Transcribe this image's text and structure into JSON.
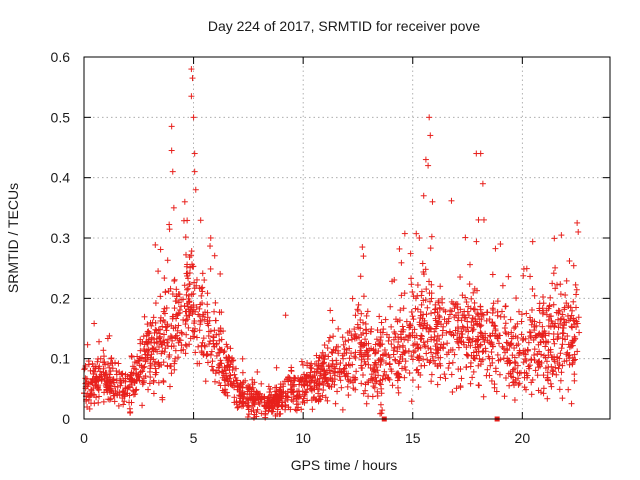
{
  "chart_data": {
    "type": "scatter",
    "title": "Day 224 of 2017, SRMTID for receiver pove",
    "xlabel": "GPS time / hours",
    "ylabel": "SRMTID / TECUs",
    "xlim": [
      0,
      24
    ],
    "ylim": [
      0,
      0.6
    ],
    "xticks": [
      0,
      5,
      10,
      15,
      20
    ],
    "yticks": [
      0,
      0.1,
      0.2,
      0.3,
      0.4,
      0.5,
      0.6
    ],
    "xtick_labels": [
      "0",
      "5",
      "10",
      "15",
      "20"
    ],
    "ytick_labels": [
      "0",
      "0.1",
      "0.2",
      "0.3",
      "0.4",
      "0.5",
      "0.6"
    ],
    "grid": true,
    "marker": "+",
    "color": "#e8201c",
    "outliers": [
      {
        "x": 4.0,
        "y": 0.485
      },
      {
        "x": 4.0,
        "y": 0.445
      },
      {
        "x": 4.05,
        "y": 0.41
      },
      {
        "x": 4.1,
        "y": 0.35
      },
      {
        "x": 4.6,
        "y": 0.36
      },
      {
        "x": 4.9,
        "y": 0.58
      },
      {
        "x": 4.95,
        "y": 0.565
      },
      {
        "x": 4.9,
        "y": 0.535
      },
      {
        "x": 5.0,
        "y": 0.5
      },
      {
        "x": 5.05,
        "y": 0.44
      },
      {
        "x": 5.05,
        "y": 0.41
      },
      {
        "x": 5.1,
        "y": 0.38
      },
      {
        "x": 9.2,
        "y": 0.172
      },
      {
        "x": 15.3,
        "y": 0.3
      },
      {
        "x": 15.5,
        "y": 0.37
      },
      {
        "x": 15.6,
        "y": 0.43
      },
      {
        "x": 15.75,
        "y": 0.5
      },
      {
        "x": 15.8,
        "y": 0.47
      },
      {
        "x": 15.7,
        "y": 0.42
      },
      {
        "x": 15.9,
        "y": 0.36
      },
      {
        "x": 17.9,
        "y": 0.44
      },
      {
        "x": 18.1,
        "y": 0.44
      },
      {
        "x": 18.2,
        "y": 0.39
      },
      {
        "x": 18.0,
        "y": 0.33
      },
      {
        "x": 18.25,
        "y": 0.33
      },
      {
        "x": 22.5,
        "y": 0.325
      },
      {
        "x": 22.55,
        "y": 0.31
      },
      {
        "x": 12.7,
        "y": 0.285
      },
      {
        "x": 12.75,
        "y": 0.27
      },
      {
        "x": 19.0,
        "y": 0.29
      }
    ],
    "square_markers": [
      {
        "x": 13.7,
        "y": 0.0
      },
      {
        "x": 18.85,
        "y": 0.0
      }
    ],
    "envelope_note": "Dense scatter; typical values by hour follow envelope below",
    "envelope": [
      {
        "x": 0.0,
        "mean": 0.055,
        "spread": 0.035
      },
      {
        "x": 1.0,
        "mean": 0.065,
        "spread": 0.04
      },
      {
        "x": 2.0,
        "mean": 0.045,
        "spread": 0.03
      },
      {
        "x": 3.0,
        "mean": 0.11,
        "spread": 0.07
      },
      {
        "x": 4.0,
        "mean": 0.15,
        "spread": 0.09
      },
      {
        "x": 4.8,
        "mean": 0.2,
        "spread": 0.08
      },
      {
        "x": 5.5,
        "mean": 0.15,
        "spread": 0.07
      },
      {
        "x": 6.5,
        "mean": 0.08,
        "spread": 0.05
      },
      {
        "x": 7.5,
        "mean": 0.035,
        "spread": 0.025
      },
      {
        "x": 8.5,
        "mean": 0.025,
        "spread": 0.02
      },
      {
        "x": 9.5,
        "mean": 0.05,
        "spread": 0.03
      },
      {
        "x": 10.5,
        "mean": 0.065,
        "spread": 0.035
      },
      {
        "x": 11.5,
        "mean": 0.085,
        "spread": 0.05
      },
      {
        "x": 12.5,
        "mean": 0.11,
        "spread": 0.07
      },
      {
        "x": 13.5,
        "mean": 0.09,
        "spread": 0.06
      },
      {
        "x": 14.5,
        "mean": 0.12,
        "spread": 0.07
      },
      {
        "x": 15.5,
        "mean": 0.16,
        "spread": 0.09
      },
      {
        "x": 16.5,
        "mean": 0.13,
        "spread": 0.08
      },
      {
        "x": 17.5,
        "mean": 0.14,
        "spread": 0.08
      },
      {
        "x": 18.5,
        "mean": 0.13,
        "spread": 0.08
      },
      {
        "x": 19.5,
        "mean": 0.11,
        "spread": 0.07
      },
      {
        "x": 20.5,
        "mean": 0.12,
        "spread": 0.08
      },
      {
        "x": 21.5,
        "mean": 0.13,
        "spread": 0.08
      },
      {
        "x": 22.5,
        "mean": 0.12,
        "spread": 0.08
      }
    ],
    "x_end": 22.6
  }
}
